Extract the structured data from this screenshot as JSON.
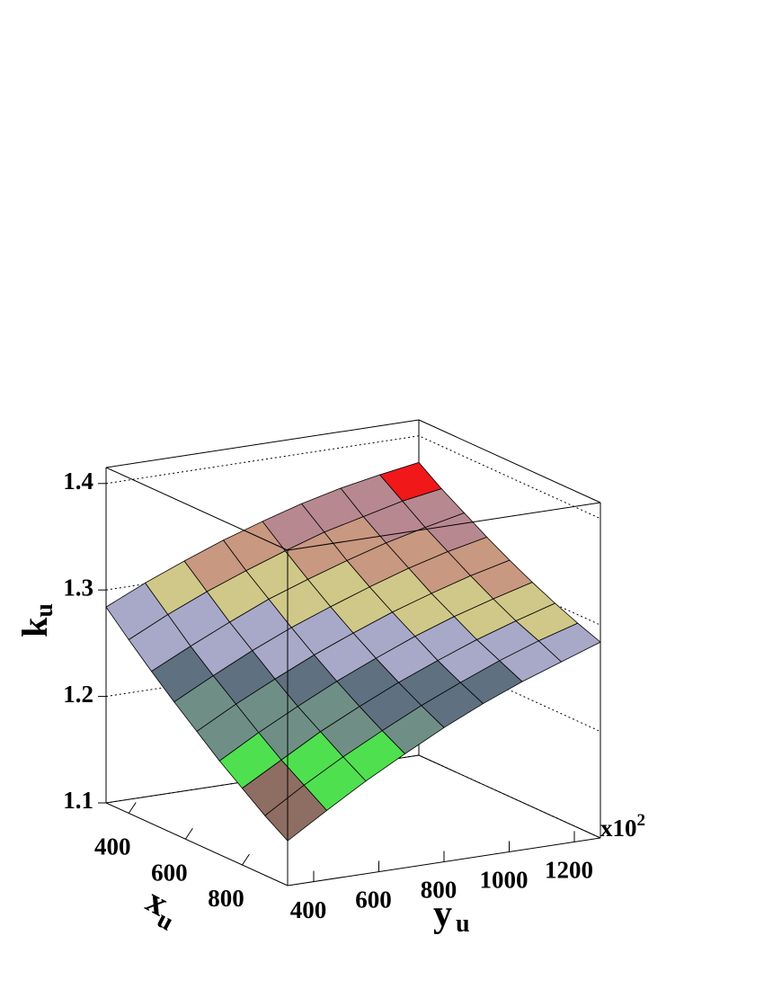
{
  "chart_data": {
    "type": "surface3d",
    "x": [
      320,
      400,
      480,
      560,
      640,
      720,
      800,
      880,
      960
    ],
    "y": [
      320,
      440,
      560,
      680,
      800,
      920,
      1040,
      1160,
      1280
    ],
    "z": [
      [
        1.284,
        1.301,
        1.316,
        1.33,
        1.342,
        1.353,
        1.362,
        1.369,
        1.375
      ],
      [
        1.263,
        1.281,
        1.297,
        1.311,
        1.324,
        1.336,
        1.345,
        1.354,
        1.36
      ],
      [
        1.243,
        1.261,
        1.278,
        1.294,
        1.307,
        1.319,
        1.33,
        1.339,
        1.347
      ],
      [
        1.224,
        1.243,
        1.261,
        1.277,
        1.291,
        1.304,
        1.316,
        1.326,
        1.334
      ],
      [
        1.206,
        1.226,
        1.244,
        1.261,
        1.276,
        1.29,
        1.302,
        1.313,
        1.322
      ],
      [
        1.188,
        1.209,
        1.228,
        1.246,
        1.262,
        1.277,
        1.29,
        1.301,
        1.311
      ],
      [
        1.172,
        1.193,
        1.214,
        1.232,
        1.249,
        1.264,
        1.278,
        1.29,
        1.301
      ],
      [
        1.156,
        1.179,
        1.2,
        1.219,
        1.237,
        1.253,
        1.268,
        1.281,
        1.292
      ],
      [
        1.142,
        1.165,
        1.187,
        1.207,
        1.226,
        1.243,
        1.258,
        1.271,
        1.284
      ]
    ],
    "xlim": [
      320,
      960
    ],
    "ylim": [
      320,
      1280
    ],
    "zlim": [
      1.1,
      1.415
    ],
    "xticks": [
      400,
      600,
      800
    ],
    "yticks": [
      400,
      600,
      800,
      1000,
      1200
    ],
    "zticks": [
      1.1,
      1.2,
      1.3,
      1.4
    ],
    "xlabel": "x",
    "xlabel_sub": "u",
    "ylabel": "y",
    "ylabel_sub": "u",
    "zlabel": "k",
    "zlabel_sub": "u",
    "y_multiplier": "x10",
    "y_multiplier_exponent": "2",
    "palette": [
      "#d8d0b0",
      "#d4c6a2",
      "#8e6e62",
      "#4fe04f",
      "#6f8f86",
      "#5f7080",
      "#a8a8c8",
      "#d0c888",
      "#c89880",
      "#b88890",
      "#f01818",
      "#f0f020"
    ],
    "mesh_color": "#000000",
    "grid": true
  }
}
